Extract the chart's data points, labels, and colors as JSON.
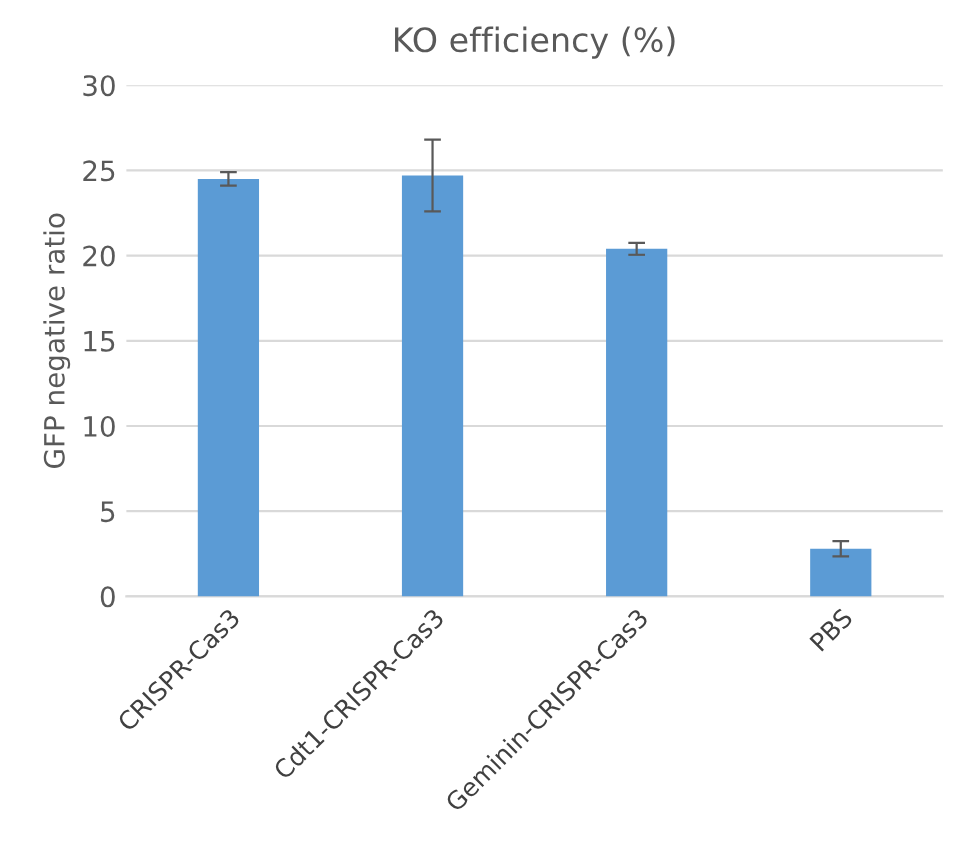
{
  "chart_data": {
    "type": "bar",
    "title": "KO efficiency (%)",
    "ylabel": "GFP negative ratio",
    "categories": [
      "CRISPR-Cas3",
      "Cdt1-CRISPR-Cas3",
      "Geminin-CRISPR-Cas3",
      "PBS"
    ],
    "values": [
      24.5,
      24.7,
      20.4,
      2.8
    ],
    "errors": [
      0.4,
      2.1,
      0.35,
      0.45
    ],
    "color": "#5b9bd5",
    "ylim": [
      0,
      30
    ],
    "yticks": [
      0,
      5,
      10,
      15,
      20,
      25,
      30
    ],
    "grid": "y"
  }
}
